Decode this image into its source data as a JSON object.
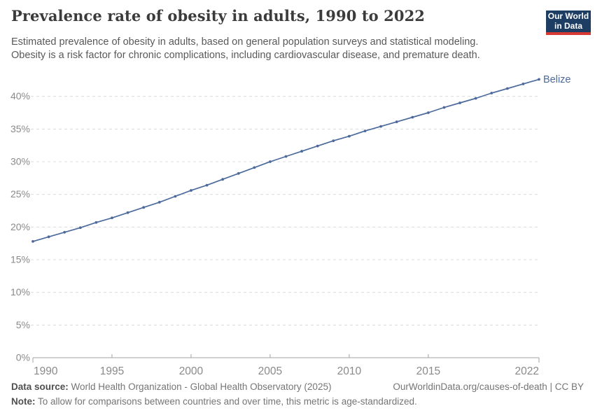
{
  "header": {
    "title": "Prevalence rate of obesity in adults, 1990 to 2022",
    "subtitle_line1": "Estimated prevalence of obesity in adults, based on general population surveys and statistical modeling.",
    "subtitle_line2": "Obesity is a risk factor for chronic complications, including cardiovascular disease, and premature death.",
    "logo": {
      "line1": "Our World",
      "line2": "in Data",
      "bg_color": "#1d3d63",
      "accent_color": "#d73a32"
    }
  },
  "chart_data": {
    "type": "line",
    "title": "Prevalence rate of obesity in adults, 1990 to 2022",
    "xlabel": "",
    "ylabel": "",
    "x": [
      1990,
      1991,
      1992,
      1993,
      1994,
      1995,
      1996,
      1997,
      1998,
      1999,
      2000,
      2001,
      2002,
      2003,
      2004,
      2005,
      2006,
      2007,
      2008,
      2009,
      2010,
      2011,
      2012,
      2013,
      2014,
      2015,
      2016,
      2017,
      2018,
      2019,
      2020,
      2021,
      2022
    ],
    "series": [
      {
        "name": "Belize",
        "color": "#4c6a9c",
        "values": [
          17.8,
          18.5,
          19.2,
          19.9,
          20.7,
          21.4,
          22.2,
          23.0,
          23.8,
          24.7,
          25.6,
          26.4,
          27.3,
          28.2,
          29.1,
          30.0,
          30.8,
          31.6,
          32.4,
          33.2,
          33.9,
          34.7,
          35.4,
          36.1,
          36.8,
          37.5,
          38.3,
          39.0,
          39.7,
          40.5,
          41.2,
          41.9,
          42.6
        ]
      }
    ],
    "xlim": [
      1990,
      2022
    ],
    "ylim": [
      0,
      45
    ],
    "xticks": [
      1990,
      1995,
      2000,
      2005,
      2010,
      2015,
      2022
    ],
    "yticks": [
      0,
      5,
      10,
      15,
      20,
      25,
      30,
      35,
      40,
      45
    ],
    "ytick_suffix": "%",
    "grid": "horizontal-dashed",
    "legend_position": "end-of-line-label",
    "marker": "dot"
  },
  "footer": {
    "datasource_label": "Data source:",
    "datasource_text": " World Health Organization - Global Health Observatory (2025)",
    "link_text": "OurWorldinData.org/causes-of-death | CC BY",
    "note_label": "Note:",
    "note_text": " To allow for comparisons between countries and over time, this metric is age-standardized."
  }
}
